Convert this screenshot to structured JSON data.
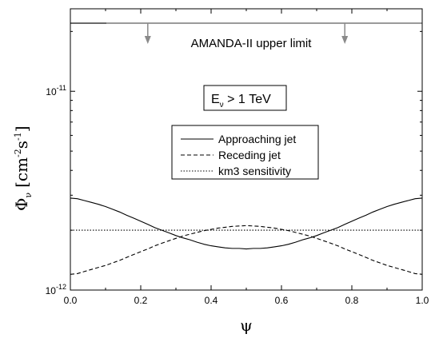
{
  "chart_data": {
    "type": "line",
    "xlabel": "ψ",
    "ylabel": {
      "symbol": "Φ",
      "symbol_sub": "ν",
      "bracket_open": "[cm",
      "exp1": "-2",
      "mid": "s",
      "exp2": "-1",
      "bracket_close": "]"
    },
    "xscale": "linear",
    "yscale": "log",
    "xlim": [
      0.0,
      1.0
    ],
    "ylim": [
      1e-12,
      2.6e-11
    ],
    "x_ticks": [
      {
        "value": 0.0,
        "label": "0.0"
      },
      {
        "value": 0.2,
        "label": "0.2"
      },
      {
        "value": 0.4,
        "label": "0.4"
      },
      {
        "value": 0.6,
        "label": "0.6"
      },
      {
        "value": 0.8,
        "label": "0.8"
      },
      {
        "value": 1.0,
        "label": "1.0"
      }
    ],
    "y_ticks": [
      {
        "value": 1e-12,
        "base": "10",
        "exp": "-12"
      },
      {
        "value": 1e-11,
        "base": "10",
        "exp": "-11"
      }
    ],
    "grid": false,
    "annotations": {
      "upper_limit": {
        "text": "AMANDA-II upper limit",
        "value": 2.2e-11,
        "arrows_at_x": [
          0.22,
          0.78
        ]
      },
      "energy_box": {
        "prefix": "E",
        "sub": "ν",
        "suffix": " > 1 TeV"
      }
    },
    "legend": {
      "position": "center",
      "entries": [
        {
          "label": "Approaching jet",
          "style": "solid"
        },
        {
          "label": "Receding jet",
          "style": "dashed"
        },
        {
          "label": "km3 sensitivity",
          "style": "dotted"
        }
      ]
    },
    "series": [
      {
        "name": "Approaching jet",
        "style": "solid",
        "x": [
          0.0,
          0.02,
          0.04,
          0.06,
          0.08,
          0.1,
          0.12,
          0.14,
          0.16,
          0.18,
          0.2,
          0.22,
          0.24,
          0.26,
          0.28,
          0.3,
          0.32,
          0.34,
          0.36,
          0.38,
          0.4,
          0.42,
          0.44,
          0.46,
          0.48,
          0.5,
          0.52,
          0.54,
          0.56,
          0.58,
          0.6,
          0.62,
          0.64,
          0.66,
          0.68,
          0.7,
          0.72,
          0.74,
          0.76,
          0.78,
          0.8,
          0.82,
          0.84,
          0.86,
          0.88,
          0.9,
          0.92,
          0.94,
          0.96,
          0.98,
          1.0
        ],
        "y": [
          2.9e-12,
          2.88e-12,
          2.82e-12,
          2.76e-12,
          2.7e-12,
          2.63e-12,
          2.55e-12,
          2.47e-12,
          2.38e-12,
          2.3e-12,
          2.22e-12,
          2.14e-12,
          2.06e-12,
          2e-12,
          1.94e-12,
          1.88e-12,
          1.83e-12,
          1.79e-12,
          1.74e-12,
          1.7e-12,
          1.67e-12,
          1.65e-12,
          1.63e-12,
          1.62e-12,
          1.62e-12,
          1.61e-12,
          1.62e-12,
          1.62e-12,
          1.63e-12,
          1.65e-12,
          1.67e-12,
          1.7e-12,
          1.74e-12,
          1.79e-12,
          1.83e-12,
          1.88e-12,
          1.94e-12,
          2e-12,
          2.06e-12,
          2.14e-12,
          2.22e-12,
          2.3e-12,
          2.38e-12,
          2.47e-12,
          2.55e-12,
          2.63e-12,
          2.7e-12,
          2.76e-12,
          2.82e-12,
          2.88e-12,
          2.9e-12
        ]
      },
      {
        "name": "Receding jet",
        "style": "dashed",
        "x": [
          0.0,
          0.02,
          0.04,
          0.06,
          0.08,
          0.1,
          0.12,
          0.14,
          0.16,
          0.18,
          0.2,
          0.22,
          0.24,
          0.26,
          0.28,
          0.3,
          0.32,
          0.34,
          0.36,
          0.38,
          0.4,
          0.42,
          0.44,
          0.46,
          0.48,
          0.5,
          0.52,
          0.54,
          0.56,
          0.58,
          0.6,
          0.62,
          0.64,
          0.66,
          0.68,
          0.7,
          0.72,
          0.74,
          0.76,
          0.78,
          0.8,
          0.82,
          0.84,
          0.86,
          0.88,
          0.9,
          0.92,
          0.94,
          0.96,
          0.98,
          1.0
        ],
        "y": [
          1.2e-12,
          1.21e-12,
          1.24e-12,
          1.27e-12,
          1.3e-12,
          1.33e-12,
          1.37e-12,
          1.41e-12,
          1.46e-12,
          1.51e-12,
          1.56e-12,
          1.61e-12,
          1.67e-12,
          1.72e-12,
          1.77e-12,
          1.82e-12,
          1.87e-12,
          1.91e-12,
          1.95e-12,
          1.99e-12,
          2.02e-12,
          2.05e-12,
          2.07e-12,
          2.09e-12,
          2.1e-12,
          2.11e-12,
          2.1e-12,
          2.09e-12,
          2.07e-12,
          2.05e-12,
          2.02e-12,
          1.99e-12,
          1.95e-12,
          1.91e-12,
          1.87e-12,
          1.82e-12,
          1.77e-12,
          1.72e-12,
          1.67e-12,
          1.61e-12,
          1.56e-12,
          1.51e-12,
          1.46e-12,
          1.41e-12,
          1.37e-12,
          1.33e-12,
          1.3e-12,
          1.27e-12,
          1.24e-12,
          1.21e-12,
          1.2e-12
        ]
      },
      {
        "name": "km3 sensitivity",
        "style": "dotted",
        "x": [
          0.0,
          1.0
        ],
        "y": [
          2e-12,
          2e-12
        ]
      }
    ]
  }
}
